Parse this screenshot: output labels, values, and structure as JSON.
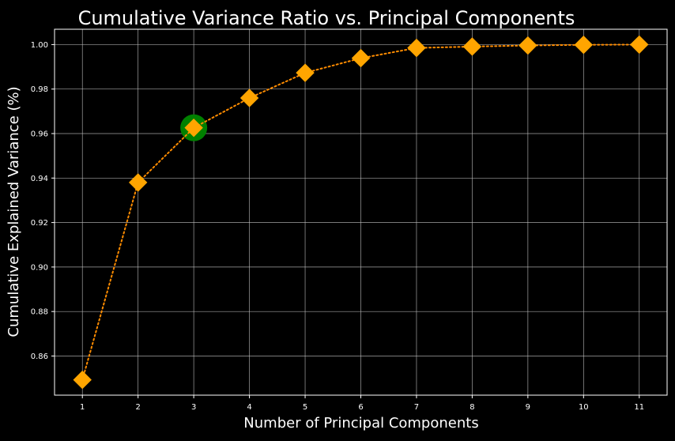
{
  "colors": {
    "background": "#000000",
    "text": "#ffffff",
    "grid": "#bfbfbf",
    "line": "#ff8c00",
    "marker": "#ffa500",
    "highlight": "#008000"
  },
  "chart_data": {
    "type": "line",
    "title": "Cumulative Variance Ratio vs. Principal Components",
    "xlabel": "Number of Principal Components",
    "ylabel": "Cumulative Explained Variance (%)",
    "x": [
      1,
      2,
      3,
      4,
      5,
      6,
      7,
      8,
      9,
      10,
      11
    ],
    "y": [
      0.8493,
      0.938,
      0.9626,
      0.976,
      0.9873,
      0.9939,
      0.9985,
      0.9991,
      0.9996,
      0.9999,
      1.0
    ],
    "xlim": [
      0.5,
      11.5
    ],
    "ylim": [
      0.8424,
      1.0069
    ],
    "yticks": [
      0.86,
      0.88,
      0.9,
      0.92,
      0.94,
      0.96,
      0.98,
      1.0
    ],
    "ytick_labels": [
      "0.86",
      "0.88",
      "0.90",
      "0.92",
      "0.94",
      "0.96",
      "0.98",
      "1.00"
    ],
    "xticks": [
      1,
      2,
      3,
      4,
      5,
      6,
      7,
      8,
      9,
      10,
      11
    ],
    "xtick_labels": [
      "1",
      "2",
      "3",
      "4",
      "5",
      "6",
      "7",
      "8",
      "9",
      "10",
      "11"
    ],
    "grid": true,
    "line_style": "dotted",
    "marker": "diamond",
    "highlighted_point": {
      "x": 3,
      "y": 0.9626
    }
  }
}
